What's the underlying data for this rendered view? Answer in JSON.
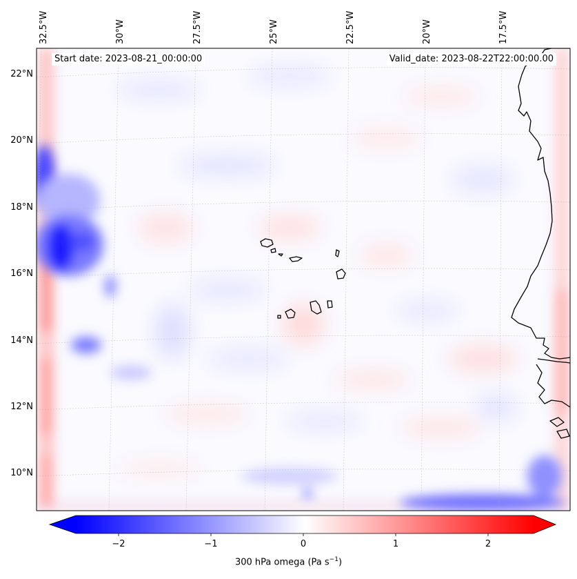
{
  "header": {
    "start_date": "Start date: 2023-08-21_00:00:00",
    "valid_date": "Valid_date: 2023-08-22T22:00:00.00"
  },
  "map": {
    "projection": "lambert-conformal",
    "lon_ticks": [
      "32.5°W",
      "30°W",
      "27.5°W",
      "25°W",
      "22.5°W",
      "20°W",
      "17.5°W"
    ],
    "lat_ticks": [
      "22°N",
      "20°N",
      "18°N",
      "16°N",
      "14°N",
      "12°N",
      "10°N"
    ],
    "coastline": [
      "West Africa (Senegal, Gambia, Guinea-Bissau)",
      "Cape Verde islands"
    ],
    "gridlines": true
  },
  "colorbar": {
    "label_text": "300 hPa omega (Pa s",
    "label_sup": "−1",
    "label_close": ")",
    "ticks": [
      "−2",
      "−1",
      "0",
      "1",
      "2"
    ],
    "range": [
      -2.75,
      2.75
    ],
    "extend": "both",
    "colormap": "bwr",
    "colors": {
      "negative": "#0000ff",
      "zero": "#ffffff",
      "positive": "#ff0000"
    }
  }
}
